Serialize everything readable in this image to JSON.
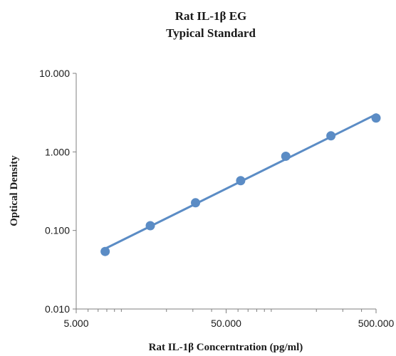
{
  "chart_data": {
    "type": "scatter",
    "title": "Rat IL-1β EG",
    "subtitle": "Typical Standard",
    "xlabel": "Rat IL-1β Concerntration (pg/ml)",
    "ylabel": "Optical Density",
    "x_scale": "log",
    "y_scale": "log",
    "xlim": [
      5,
      500
    ],
    "ylim": [
      0.01,
      10
    ],
    "x_ticks": [
      "5.000",
      "50.000",
      "500.000"
    ],
    "y_ticks": [
      "0.010",
      "0.100",
      "1.000",
      "10.000"
    ],
    "grid": false,
    "legend": "none",
    "series": [
      {
        "x": [
          7.8,
          15.6,
          31.25,
          62.5,
          125,
          250,
          500
        ],
        "y": [
          0.054,
          0.115,
          0.225,
          0.43,
          0.88,
          1.6,
          2.7
        ],
        "color": "#5b8cc5",
        "trendline": "power"
      }
    ]
  }
}
